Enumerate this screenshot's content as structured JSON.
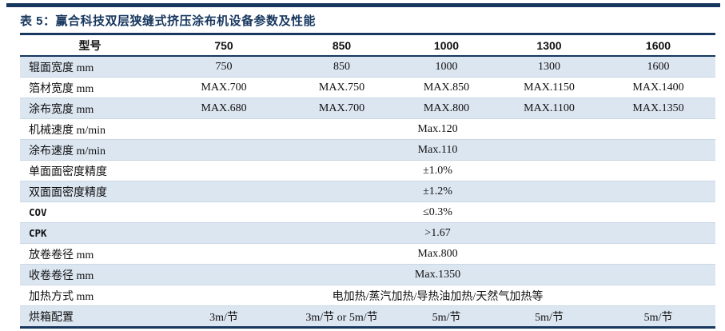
{
  "page": {
    "title": "表 5：赢合科技双层狭缝式挤压涂布机设备参数及性能",
    "accent_color": "#17375e",
    "row_alt_color": "#dce6f1"
  },
  "table": {
    "columns": [
      "型号",
      "750",
      "850",
      "1000",
      "1300",
      "1600"
    ],
    "rows": [
      {
        "label": "辊面宽度 mm",
        "type": "per_column",
        "values": [
          "750",
          "850",
          "1000",
          "1300",
          "1600"
        ]
      },
      {
        "label": "箔材宽度 mm",
        "type": "per_column",
        "values": [
          "MAX.700",
          "MAX.750",
          "MAX.850",
          "MAX.1150",
          "MAX.1400"
        ]
      },
      {
        "label": "涂布宽度 mm",
        "type": "per_column",
        "values": [
          "MAX.680",
          "MAX.700",
          "MAX.800",
          "MAX.1100",
          "MAX.1350"
        ]
      },
      {
        "label": "机械速度 m/min",
        "type": "span",
        "value": "Max.120"
      },
      {
        "label": "涂布速度 m/min",
        "type": "span",
        "value": "Max.110"
      },
      {
        "label": "单面面密度精度",
        "type": "span",
        "value": "±1.0%"
      },
      {
        "label": "双面面密度精度",
        "type": "span",
        "value": "±1.2%"
      },
      {
        "label": "COV",
        "type": "span",
        "value": "≤0.3%",
        "mono_label": true
      },
      {
        "label": "CPK",
        "type": "span",
        "value": ">1.67",
        "mono_label": true
      },
      {
        "label": "放卷卷径 mm",
        "type": "span",
        "value": "Max.800"
      },
      {
        "label": "收卷卷径 mm",
        "type": "span",
        "value": "Max.1350"
      },
      {
        "label": "加热方式 mm",
        "type": "span",
        "value": "电加热/蒸汽加热/导热油加热/天然气加热等"
      },
      {
        "label": "烘箱配置",
        "type": "per_column",
        "values": [
          "3m/节",
          "3m/节 or 5m/节",
          "5m/节",
          "5m/节",
          "5m/节"
        ]
      }
    ]
  }
}
